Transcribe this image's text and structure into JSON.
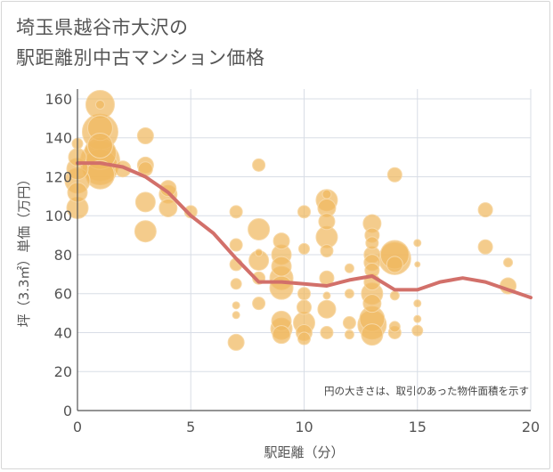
{
  "chart_title": "埼玉県越谷市大沢の\n駅距離別中古マンション価格",
  "colors": {
    "bubble_fill": "#f0b860",
    "bubble_stroke": "#f7d8a6",
    "line": "#d2706a",
    "grid": "#d8dde6",
    "axis": "#555555"
  },
  "chart_data": {
    "type": "scatter",
    "xlabel": "駅距離（分）",
    "ylabel": "坪（3.3㎡）単価（万円）",
    "xlim": [
      0,
      20
    ],
    "ylim": [
      0,
      165
    ],
    "x_ticks": [
      "0",
      "5",
      "10",
      "15",
      "20"
    ],
    "y_ticks": [
      "0",
      "20",
      "40",
      "60",
      "80",
      "100",
      "120",
      "140",
      "160"
    ],
    "grid": true,
    "note": "円の大きさは、取引のあった物件面積を示す",
    "points": [
      {
        "x": 0,
        "y": 137,
        "size": 6
      },
      {
        "x": 0,
        "y": 130,
        "size": 10
      },
      {
        "x": 0,
        "y": 124,
        "size": 12
      },
      {
        "x": 0,
        "y": 118,
        "size": 14
      },
      {
        "x": 0,
        "y": 112,
        "size": 11
      },
      {
        "x": 0,
        "y": 104,
        "size": 12
      },
      {
        "x": 1,
        "y": 157,
        "size": 16
      },
      {
        "x": 1,
        "y": 145,
        "size": 14
      },
      {
        "x": 1,
        "y": 143,
        "size": 20
      },
      {
        "x": 1,
        "y": 136,
        "size": 14
      },
      {
        "x": 1,
        "y": 132,
        "size": 18
      },
      {
        "x": 1,
        "y": 128,
        "size": 22
      },
      {
        "x": 1,
        "y": 125,
        "size": 20
      },
      {
        "x": 1,
        "y": 121,
        "size": 16
      },
      {
        "x": 1,
        "y": 157,
        "size": 5
      },
      {
        "x": 2,
        "y": 124,
        "size": 9
      },
      {
        "x": 3,
        "y": 141,
        "size": 9
      },
      {
        "x": 3,
        "y": 126,
        "size": 9
      },
      {
        "x": 3,
        "y": 124,
        "size": 8
      },
      {
        "x": 3,
        "y": 107,
        "size": 11
      },
      {
        "x": 3,
        "y": 92,
        "size": 12
      },
      {
        "x": 4,
        "y": 114,
        "size": 9
      },
      {
        "x": 4,
        "y": 111,
        "size": 10
      },
      {
        "x": 4,
        "y": 104,
        "size": 10
      },
      {
        "x": 5,
        "y": 102,
        "size": 7
      },
      {
        "x": 7,
        "y": 102,
        "size": 7
      },
      {
        "x": 7,
        "y": 85,
        "size": 7
      },
      {
        "x": 7,
        "y": 75,
        "size": 7
      },
      {
        "x": 7,
        "y": 65,
        "size": 6
      },
      {
        "x": 7,
        "y": 54,
        "size": 4
      },
      {
        "x": 7,
        "y": 49,
        "size": 4
      },
      {
        "x": 7,
        "y": 35,
        "size": 9
      },
      {
        "x": 8,
        "y": 126,
        "size": 7
      },
      {
        "x": 8,
        "y": 93,
        "size": 12
      },
      {
        "x": 8,
        "y": 81,
        "size": 4
      },
      {
        "x": 8,
        "y": 77,
        "size": 11
      },
      {
        "x": 8,
        "y": 68,
        "size": 7
      },
      {
        "x": 8,
        "y": 55,
        "size": 7
      },
      {
        "x": 9,
        "y": 87,
        "size": 9
      },
      {
        "x": 9,
        "y": 80,
        "size": 11
      },
      {
        "x": 9,
        "y": 74,
        "size": 11
      },
      {
        "x": 9,
        "y": 68,
        "size": 13
      },
      {
        "x": 9,
        "y": 63,
        "size": 13
      },
      {
        "x": 9,
        "y": 46,
        "size": 11
      },
      {
        "x": 9,
        "y": 42,
        "size": 12
      },
      {
        "x": 9,
        "y": 39,
        "size": 10
      },
      {
        "x": 10,
        "y": 102,
        "size": 7
      },
      {
        "x": 10,
        "y": 83,
        "size": 6
      },
      {
        "x": 10,
        "y": 60,
        "size": 7
      },
      {
        "x": 10,
        "y": 53,
        "size": 8
      },
      {
        "x": 10,
        "y": 45,
        "size": 12
      },
      {
        "x": 10,
        "y": 40,
        "size": 9
      },
      {
        "x": 10,
        "y": 37,
        "size": 7
      },
      {
        "x": 11,
        "y": 111,
        "size": 5
      },
      {
        "x": 11,
        "y": 108,
        "size": 12
      },
      {
        "x": 11,
        "y": 104,
        "size": 10
      },
      {
        "x": 11,
        "y": 97,
        "size": 9
      },
      {
        "x": 11,
        "y": 89,
        "size": 12
      },
      {
        "x": 11,
        "y": 82,
        "size": 7
      },
      {
        "x": 11,
        "y": 68,
        "size": 8
      },
      {
        "x": 11,
        "y": 59,
        "size": 4
      },
      {
        "x": 11,
        "y": 52,
        "size": 10
      },
      {
        "x": 11,
        "y": 40,
        "size": 7
      },
      {
        "x": 12,
        "y": 73,
        "size": 5
      },
      {
        "x": 12,
        "y": 60,
        "size": 5
      },
      {
        "x": 12,
        "y": 45,
        "size": 7
      },
      {
        "x": 12,
        "y": 39,
        "size": 5
      },
      {
        "x": 13,
        "y": 96,
        "size": 10
      },
      {
        "x": 13,
        "y": 90,
        "size": 8
      },
      {
        "x": 13,
        "y": 86,
        "size": 7
      },
      {
        "x": 13,
        "y": 80,
        "size": 9
      },
      {
        "x": 13,
        "y": 76,
        "size": 9
      },
      {
        "x": 13,
        "y": 72,
        "size": 8
      },
      {
        "x": 13,
        "y": 66,
        "size": 9
      },
      {
        "x": 13,
        "y": 60,
        "size": 12
      },
      {
        "x": 13,
        "y": 55,
        "size": 10
      },
      {
        "x": 13,
        "y": 47,
        "size": 14
      },
      {
        "x": 13,
        "y": 44,
        "size": 16
      },
      {
        "x": 13,
        "y": 39,
        "size": 12
      },
      {
        "x": 14,
        "y": 121,
        "size": 8
      },
      {
        "x": 14,
        "y": 80,
        "size": 16
      },
      {
        "x": 14,
        "y": 78,
        "size": 18
      },
      {
        "x": 14,
        "y": 75,
        "size": 9
      },
      {
        "x": 14,
        "y": 59,
        "size": 5
      },
      {
        "x": 14,
        "y": 43,
        "size": 6
      },
      {
        "x": 14,
        "y": 40,
        "size": 7
      },
      {
        "x": 15,
        "y": 86,
        "size": 4
      },
      {
        "x": 15,
        "y": 75,
        "size": 3
      },
      {
        "x": 15,
        "y": 55,
        "size": 4
      },
      {
        "x": 15,
        "y": 47,
        "size": 4
      },
      {
        "x": 15,
        "y": 41,
        "size": 6
      },
      {
        "x": 18,
        "y": 103,
        "size": 8
      },
      {
        "x": 18,
        "y": 84,
        "size": 8
      },
      {
        "x": 19,
        "y": 76,
        "size": 5
      },
      {
        "x": 19,
        "y": 64,
        "size": 9
      }
    ],
    "trend": {
      "x": [
        0,
        1,
        2,
        3,
        4,
        5,
        6,
        7,
        8,
        9,
        10,
        11,
        12,
        13,
        14,
        15,
        16,
        17,
        18,
        19,
        20
      ],
      "y": [
        127,
        127,
        125,
        120,
        112,
        100,
        91,
        78,
        66,
        66,
        65,
        64,
        67,
        69,
        62,
        62,
        66,
        68,
        66,
        62,
        58
      ]
    }
  }
}
